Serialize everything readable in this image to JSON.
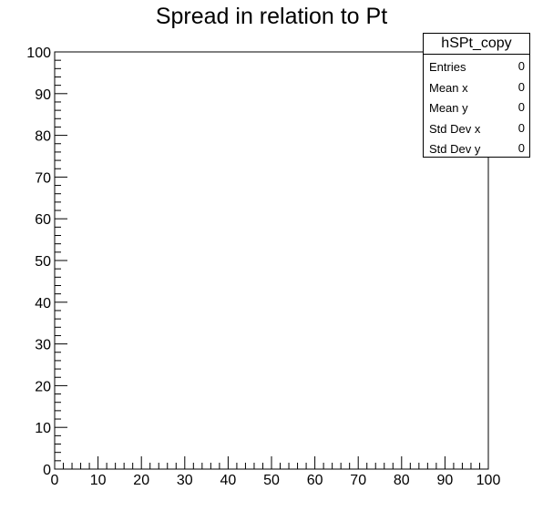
{
  "chart_data": {
    "type": "heatmap",
    "title": "Spread in relation to Pt",
    "xlabel": "",
    "ylabel": "",
    "xlim": [
      0,
      100
    ],
    "ylim": [
      0,
      100
    ],
    "x_ticks": [
      0,
      10,
      20,
      30,
      40,
      50,
      60,
      70,
      80,
      90,
      100
    ],
    "y_ticks": [
      0,
      10,
      20,
      30,
      40,
      50,
      60,
      70,
      80,
      90,
      100
    ],
    "grid": false,
    "values": [],
    "stats_box": {
      "name": "hSPt_copy",
      "rows": [
        {
          "label": "Entries",
          "value": "0"
        },
        {
          "label": "Mean x",
          "value": "0"
        },
        {
          "label": "Mean y",
          "value": "0"
        },
        {
          "label": "Std Dev x",
          "value": "0"
        },
        {
          "label": "Std Dev y",
          "value": "0"
        }
      ]
    }
  }
}
